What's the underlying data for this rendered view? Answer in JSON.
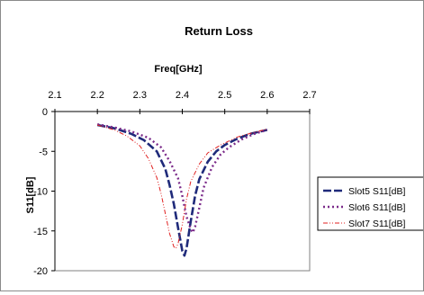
{
  "chart_data": {
    "type": "line",
    "title": "Return Loss",
    "xlabel": "Freq[GHz]",
    "ylabel": "S11[dB]",
    "x_ticks": [
      "2.1",
      "2.2",
      "2.3",
      "2.4",
      "2.5",
      "2.6",
      "2.7"
    ],
    "y_ticks": [
      "0",
      "-5",
      "-10",
      "-15",
      "-20"
    ],
    "xlim": [
      2.1,
      2.7
    ],
    "ylim": [
      -20,
      0
    ],
    "x_axis_position": "top",
    "grid": false,
    "legend_position": "right",
    "series": [
      {
        "name": "Slot5 S11[dB]",
        "color": "#1f2a7a",
        "style": "dashed-thick",
        "points": [
          [
            2.2,
            -1.7
          ],
          [
            2.24,
            -2.1
          ],
          [
            2.28,
            -2.8
          ],
          [
            2.31,
            -3.6
          ],
          [
            2.34,
            -5.0
          ],
          [
            2.36,
            -7.2
          ],
          [
            2.37,
            -9.2
          ],
          [
            2.38,
            -11.6
          ],
          [
            2.39,
            -14.6
          ],
          [
            2.4,
            -17.5
          ],
          [
            2.405,
            -18.1
          ],
          [
            2.41,
            -17.2
          ],
          [
            2.42,
            -13.8
          ],
          [
            2.43,
            -10.6
          ],
          [
            2.44,
            -8.5
          ],
          [
            2.46,
            -6.3
          ],
          [
            2.48,
            -5.0
          ],
          [
            2.5,
            -4.2
          ],
          [
            2.53,
            -3.4
          ],
          [
            2.56,
            -2.8
          ],
          [
            2.6,
            -2.3
          ]
        ]
      },
      {
        "name": "Slot6 S11[dB]",
        "color": "#7b2b8a",
        "style": "dotted",
        "points": [
          [
            2.2,
            -1.6
          ],
          [
            2.24,
            -2.0
          ],
          [
            2.28,
            -2.5
          ],
          [
            2.32,
            -3.3
          ],
          [
            2.35,
            -4.5
          ],
          [
            2.37,
            -6.2
          ],
          [
            2.39,
            -8.4
          ],
          [
            2.4,
            -10.6
          ],
          [
            2.41,
            -13.2
          ],
          [
            2.42,
            -14.8
          ],
          [
            2.425,
            -15.2
          ],
          [
            2.43,
            -14.5
          ],
          [
            2.44,
            -12.1
          ],
          [
            2.45,
            -9.6
          ],
          [
            2.47,
            -7.0
          ],
          [
            2.49,
            -5.4
          ],
          [
            2.51,
            -4.5
          ],
          [
            2.54,
            -3.5
          ],
          [
            2.57,
            -2.8
          ],
          [
            2.6,
            -2.3
          ]
        ]
      },
      {
        "name": "Slot7 S11[dB]",
        "color": "#e02020",
        "style": "dash-dot-dot",
        "points": [
          [
            2.2,
            -1.7
          ],
          [
            2.24,
            -2.3
          ],
          [
            2.27,
            -3.1
          ],
          [
            2.3,
            -4.3
          ],
          [
            2.32,
            -5.9
          ],
          [
            2.34,
            -8.3
          ],
          [
            2.35,
            -10.3
          ],
          [
            2.36,
            -12.8
          ],
          [
            2.37,
            -15.3
          ],
          [
            2.38,
            -17.0
          ],
          [
            2.385,
            -17.2
          ],
          [
            2.39,
            -16.6
          ],
          [
            2.4,
            -14.2
          ],
          [
            2.41,
            -11.0
          ],
          [
            2.42,
            -8.8
          ],
          [
            2.44,
            -6.6
          ],
          [
            2.46,
            -5.2
          ],
          [
            2.49,
            -4.2
          ],
          [
            2.53,
            -3.2
          ],
          [
            2.57,
            -2.6
          ],
          [
            2.6,
            -2.2
          ]
        ]
      }
    ]
  }
}
